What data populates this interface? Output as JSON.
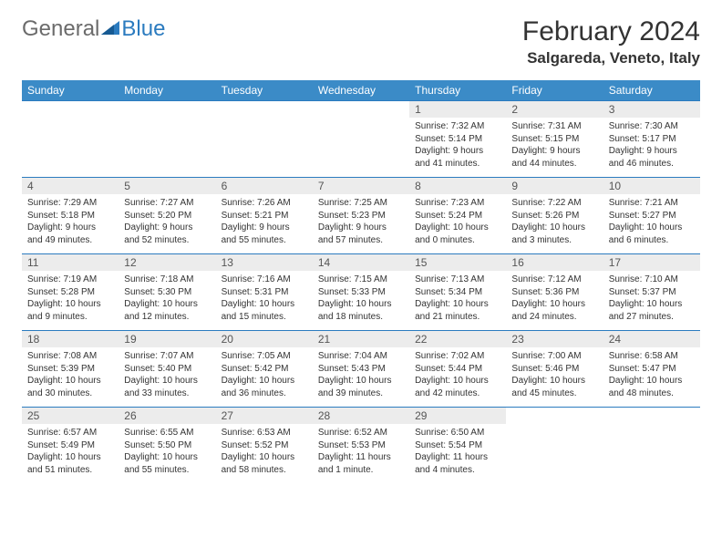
{
  "brand": {
    "part1": "General",
    "part2": "Blue"
  },
  "title": "February 2024",
  "location": "Salgareda, Veneto, Italy",
  "colors": {
    "header_bg": "#3b8bc7",
    "header_text": "#ffffff",
    "cell_border": "#2b7bbf",
    "daynum_bg": "#ececec",
    "daynum_text": "#555555",
    "body_text": "#333333",
    "logo_gray": "#6b6b6b",
    "logo_blue": "#2b7bbf",
    "background": "#ffffff"
  },
  "fonts": {
    "title_size": 30,
    "location_size": 17,
    "dayhead_size": 12,
    "cell_size": 10
  },
  "day_headers": [
    "Sunday",
    "Monday",
    "Tuesday",
    "Wednesday",
    "Thursday",
    "Friday",
    "Saturday"
  ],
  "weeks": [
    [
      null,
      null,
      null,
      null,
      {
        "n": "1",
        "sr": "7:32 AM",
        "ss": "5:14 PM",
        "dl": "9 hours and 41 minutes."
      },
      {
        "n": "2",
        "sr": "7:31 AM",
        "ss": "5:15 PM",
        "dl": "9 hours and 44 minutes."
      },
      {
        "n": "3",
        "sr": "7:30 AM",
        "ss": "5:17 PM",
        "dl": "9 hours and 46 minutes."
      }
    ],
    [
      {
        "n": "4",
        "sr": "7:29 AM",
        "ss": "5:18 PM",
        "dl": "9 hours and 49 minutes."
      },
      {
        "n": "5",
        "sr": "7:27 AM",
        "ss": "5:20 PM",
        "dl": "9 hours and 52 minutes."
      },
      {
        "n": "6",
        "sr": "7:26 AM",
        "ss": "5:21 PM",
        "dl": "9 hours and 55 minutes."
      },
      {
        "n": "7",
        "sr": "7:25 AM",
        "ss": "5:23 PM",
        "dl": "9 hours and 57 minutes."
      },
      {
        "n": "8",
        "sr": "7:23 AM",
        "ss": "5:24 PM",
        "dl": "10 hours and 0 minutes."
      },
      {
        "n": "9",
        "sr": "7:22 AM",
        "ss": "5:26 PM",
        "dl": "10 hours and 3 minutes."
      },
      {
        "n": "10",
        "sr": "7:21 AM",
        "ss": "5:27 PM",
        "dl": "10 hours and 6 minutes."
      }
    ],
    [
      {
        "n": "11",
        "sr": "7:19 AM",
        "ss": "5:28 PM",
        "dl": "10 hours and 9 minutes."
      },
      {
        "n": "12",
        "sr": "7:18 AM",
        "ss": "5:30 PM",
        "dl": "10 hours and 12 minutes."
      },
      {
        "n": "13",
        "sr": "7:16 AM",
        "ss": "5:31 PM",
        "dl": "10 hours and 15 minutes."
      },
      {
        "n": "14",
        "sr": "7:15 AM",
        "ss": "5:33 PM",
        "dl": "10 hours and 18 minutes."
      },
      {
        "n": "15",
        "sr": "7:13 AM",
        "ss": "5:34 PM",
        "dl": "10 hours and 21 minutes."
      },
      {
        "n": "16",
        "sr": "7:12 AM",
        "ss": "5:36 PM",
        "dl": "10 hours and 24 minutes."
      },
      {
        "n": "17",
        "sr": "7:10 AM",
        "ss": "5:37 PM",
        "dl": "10 hours and 27 minutes."
      }
    ],
    [
      {
        "n": "18",
        "sr": "7:08 AM",
        "ss": "5:39 PM",
        "dl": "10 hours and 30 minutes."
      },
      {
        "n": "19",
        "sr": "7:07 AM",
        "ss": "5:40 PM",
        "dl": "10 hours and 33 minutes."
      },
      {
        "n": "20",
        "sr": "7:05 AM",
        "ss": "5:42 PM",
        "dl": "10 hours and 36 minutes."
      },
      {
        "n": "21",
        "sr": "7:04 AM",
        "ss": "5:43 PM",
        "dl": "10 hours and 39 minutes."
      },
      {
        "n": "22",
        "sr": "7:02 AM",
        "ss": "5:44 PM",
        "dl": "10 hours and 42 minutes."
      },
      {
        "n": "23",
        "sr": "7:00 AM",
        "ss": "5:46 PM",
        "dl": "10 hours and 45 minutes."
      },
      {
        "n": "24",
        "sr": "6:58 AM",
        "ss": "5:47 PM",
        "dl": "10 hours and 48 minutes."
      }
    ],
    [
      {
        "n": "25",
        "sr": "6:57 AM",
        "ss": "5:49 PM",
        "dl": "10 hours and 51 minutes."
      },
      {
        "n": "26",
        "sr": "6:55 AM",
        "ss": "5:50 PM",
        "dl": "10 hours and 55 minutes."
      },
      {
        "n": "27",
        "sr": "6:53 AM",
        "ss": "5:52 PM",
        "dl": "10 hours and 58 minutes."
      },
      {
        "n": "28",
        "sr": "6:52 AM",
        "ss": "5:53 PM",
        "dl": "11 hours and 1 minute."
      },
      {
        "n": "29",
        "sr": "6:50 AM",
        "ss": "5:54 PM",
        "dl": "11 hours and 4 minutes."
      },
      null,
      null
    ]
  ],
  "labels": {
    "sunrise": "Sunrise: ",
    "sunset": "Sunset: ",
    "daylight": "Daylight: "
  }
}
